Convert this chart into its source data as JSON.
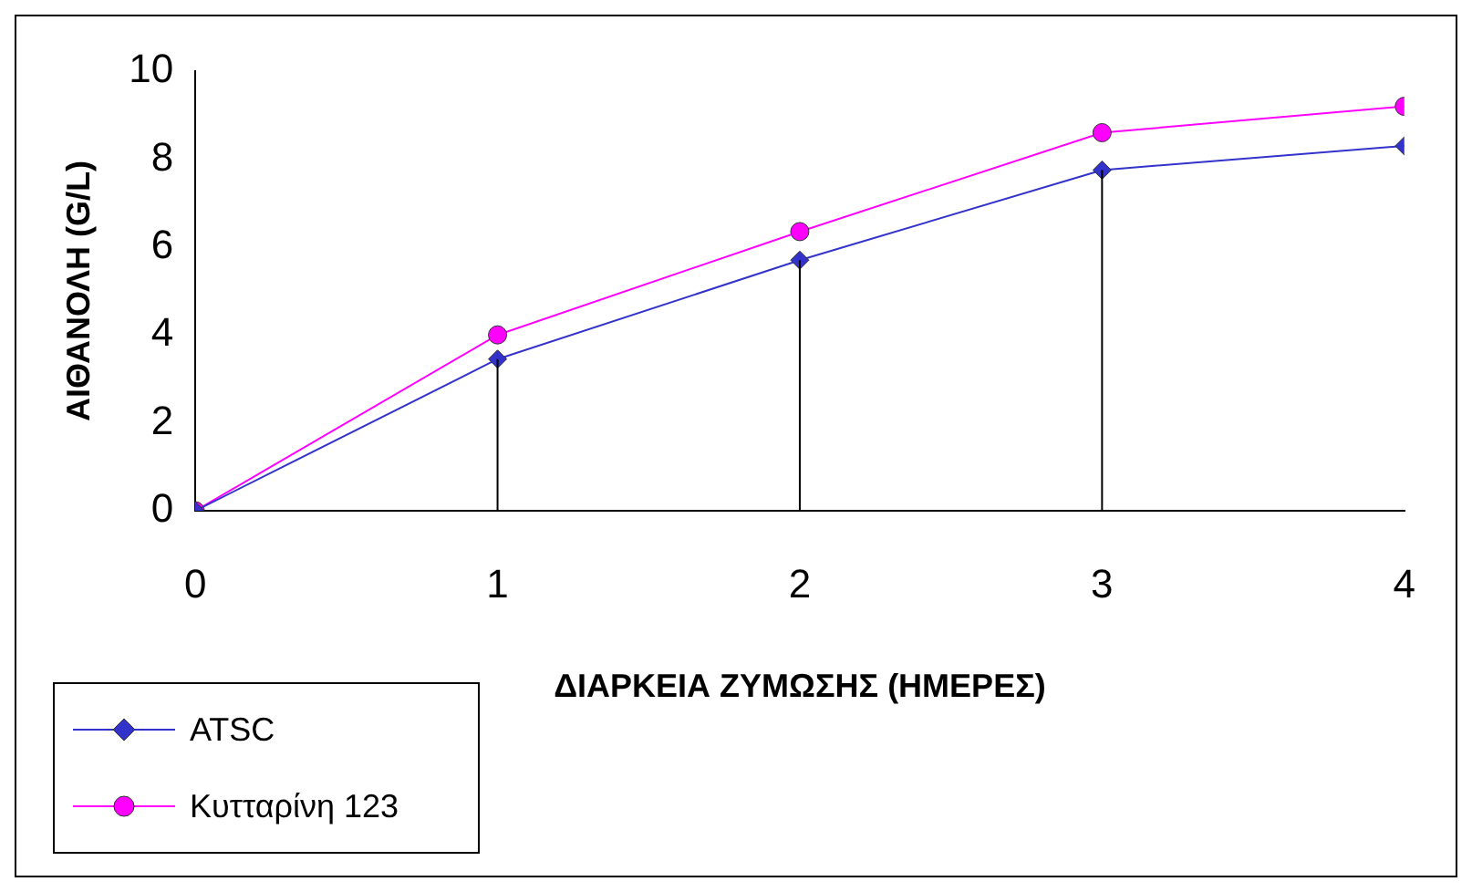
{
  "chart_data": {
    "type": "line",
    "xlabel": "ΔΙΑΡΚΕΙΑ ΖΥΜΩΣΗΣ (ΗΜΕΡΕΣ)",
    "ylabel": "ΑΙΘΑΝΟΛΗ (G/L)",
    "x": [
      0,
      1,
      2,
      3,
      4
    ],
    "series": [
      {
        "name": "ATSC",
        "color": "#3333cc",
        "marker": "diamond",
        "values": [
          0,
          3.45,
          5.7,
          7.75,
          8.3
        ]
      },
      {
        "name": "Κυτταρίνη 123",
        "color": "#ff00ff",
        "marker": "circle",
        "values": [
          0,
          4.0,
          6.35,
          8.6,
          9.2
        ]
      }
    ],
    "xlim": [
      0,
      4
    ],
    "xticks": [
      0,
      1,
      2,
      3,
      4
    ],
    "ylim": [
      0,
      10
    ],
    "yticks": [
      0,
      2,
      4,
      6,
      8,
      10
    ],
    "ref_lines": [
      {
        "axis": "x",
        "value": 1,
        "color": "#000000"
      },
      {
        "axis": "x",
        "value": 2,
        "color": "#000000"
      },
      {
        "axis": "x",
        "value": 3,
        "color": "#000000"
      }
    ],
    "grid": false,
    "legend": "bottom left",
    "line_style": "solid"
  }
}
